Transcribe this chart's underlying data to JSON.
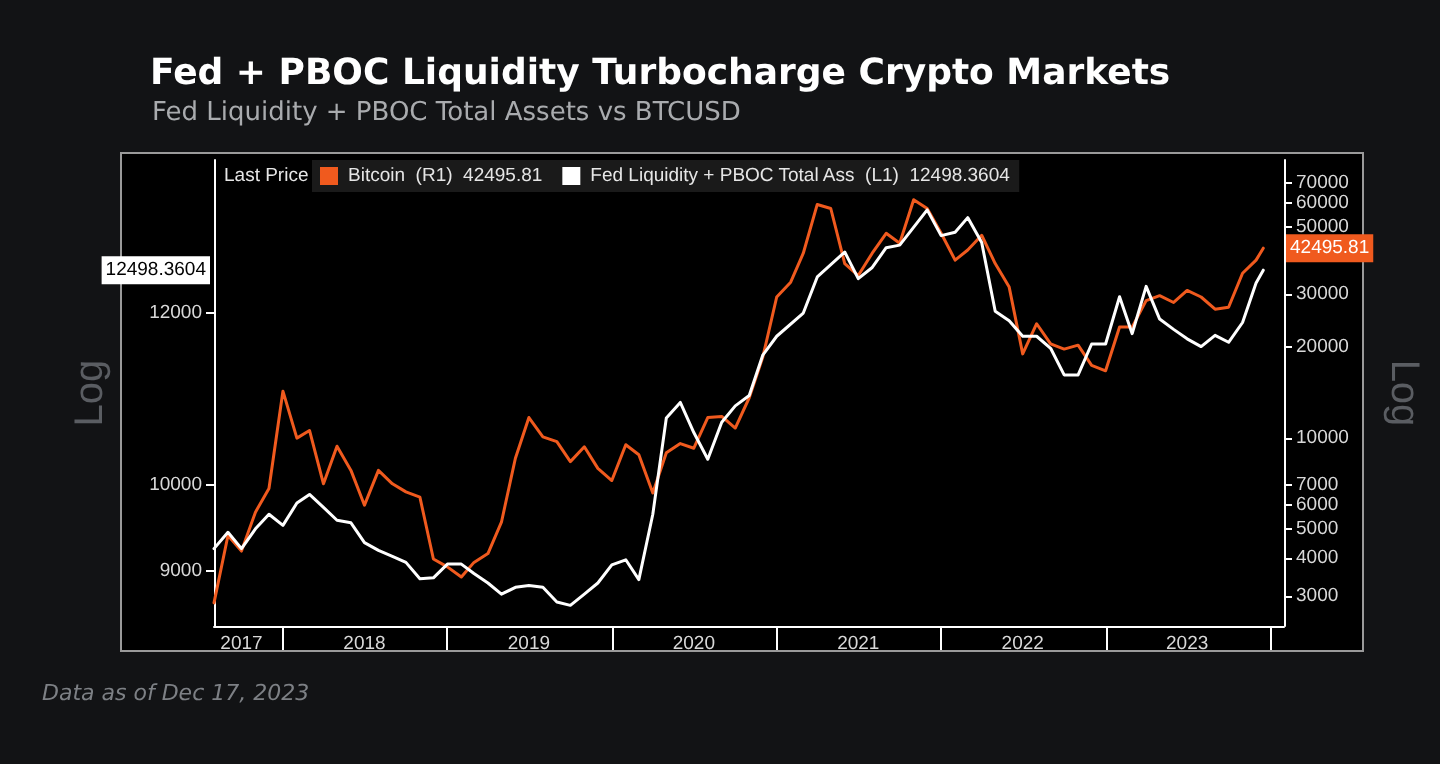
{
  "chart_data": {
    "type": "line",
    "title": "Fed + PBOC Liquidity Turbocharge Crypto Markets",
    "subtitle": "Fed Liquidity + PBOC Total Assets vs BTCUSD",
    "ylabel": "Log",
    "y2label": "Log",
    "legend_title": "Last Price",
    "legend": "top left",
    "grid": false,
    "marker": "none",
    "line_style": "solid",
    "log": "y2",
    "xlim": [
      "2017-08",
      "2024-02"
    ],
    "xticks": [
      {
        "value": "2017-10",
        "label": "2017"
      },
      {
        "value": "2018",
        "label": null
      },
      {
        "value": "2018-07",
        "label": "2018"
      },
      {
        "value": "2019",
        "label": null
      },
      {
        "value": "2019-07",
        "label": "2019"
      },
      {
        "value": "2020",
        "label": null
      },
      {
        "value": "2020-07",
        "label": "2020"
      },
      {
        "value": "2021",
        "label": null
      },
      {
        "value": "2021-07",
        "label": "2021"
      },
      {
        "value": "2022",
        "label": null
      },
      {
        "value": "2022-07",
        "label": "2022"
      },
      {
        "value": "2023",
        "label": null
      },
      {
        "value": "2023-07",
        "label": "2023"
      },
      {
        "value": "2024",
        "label": null
      }
    ],
    "ylim": [
      8360,
      13780
    ],
    "yticks": [
      9000,
      10000,
      12000
    ],
    "y2lim": [
      2390,
      83200
    ],
    "y2ticks": [
      3000,
      4000,
      5000,
      6000,
      7000,
      10000,
      20000,
      30000,
      50000,
      60000,
      70000
    ],
    "series": [
      {
        "name": "Bitcoin  (R1)  42495.81",
        "color": "#f05a1e",
        "axis": "y2",
        "x": [
          "2017-08",
          "2017-09",
          "2017-10",
          "2017-11",
          "2017-12",
          "2018-01",
          "2018-02",
          "2018-03",
          "2018-04",
          "2018-05",
          "2018-06",
          "2018-07",
          "2018-08",
          "2018-09",
          "2018-10",
          "2018-11",
          "2018-12",
          "2019-01",
          "2019-02",
          "2019-03",
          "2019-04",
          "2019-05",
          "2019-06",
          "2019-07",
          "2019-08",
          "2019-09",
          "2019-10",
          "2019-11",
          "2019-12",
          "2020-01",
          "2020-02",
          "2020-03",
          "2020-04",
          "2020-05",
          "2020-06",
          "2020-07",
          "2020-08",
          "2020-09",
          "2020-10",
          "2020-11",
          "2020-12",
          "2021-01",
          "2021-02",
          "2021-03",
          "2021-04",
          "2021-05",
          "2021-06",
          "2021-07",
          "2021-08",
          "2021-09",
          "2021-10",
          "2021-11",
          "2021-12",
          "2022-01",
          "2022-02",
          "2022-03",
          "2022-04",
          "2022-05",
          "2022-06",
          "2022-07",
          "2022-08",
          "2022-09",
          "2022-10",
          "2022-11",
          "2022-12",
          "2023-01",
          "2023-02",
          "2023-03",
          "2023-04",
          "2023-05",
          "2023-06",
          "2023-07",
          "2023-08",
          "2023-09",
          "2023-10",
          "2023-11",
          "2023-12",
          "2023-12-17"
        ],
        "values": [
          2850,
          4760,
          4230,
          5690,
          6810,
          14300,
          10000,
          10600,
          7060,
          9400,
          7820,
          6000,
          7820,
          7060,
          6640,
          6380,
          3980,
          3750,
          3470,
          3880,
          4150,
          5270,
          8580,
          11700,
          10100,
          9740,
          8360,
          9360,
          7940,
          7240,
          9510,
          8810,
          6580,
          8940,
          9590,
          9260,
          11700,
          11800,
          10800,
          13600,
          18500,
          29300,
          32800,
          40900,
          59300,
          57500,
          37800,
          34500,
          40900,
          47600,
          44100,
          61500,
          57500,
          47600,
          38800,
          41900,
          46900,
          37800,
          31600,
          19000,
          23900,
          20500,
          19700,
          20300,
          17400,
          16700,
          23300,
          23300,
          28500,
          29600,
          28100,
          30800,
          29300,
          26700,
          27100,
          35100,
          38800,
          42495.81
        ],
        "value_labels": [
          null,
          null,
          null,
          null,
          null,
          null,
          null,
          null,
          null,
          null,
          null,
          null,
          null,
          null,
          null,
          null,
          null,
          null,
          null,
          null,
          null,
          null,
          null,
          null,
          null,
          null,
          null,
          null,
          null,
          null,
          null,
          null,
          null,
          null,
          null,
          null,
          null,
          null,
          null,
          null,
          null,
          null,
          null,
          null,
          null,
          null,
          null,
          null,
          null,
          null,
          null,
          null,
          null,
          null,
          null,
          null,
          null,
          null,
          null,
          null,
          null,
          null,
          null,
          null,
          null,
          null,
          null,
          null,
          null,
          null,
          null,
          null,
          null,
          null,
          null,
          null,
          null,
          "42495.81"
        ]
      },
      {
        "name": "Fed Liquidity + PBOC Total Ass  (L1)  12498.3604",
        "color": "#ffffff",
        "x": [
          "2017-08",
          "2017-09",
          "2017-10",
          "2017-11",
          "2017-12",
          "2018-01",
          "2018-02",
          "2018-03",
          "2018-04",
          "2018-05",
          "2018-06",
          "2018-07",
          "2018-08",
          "2018-09",
          "2018-10",
          "2018-11",
          "2018-12",
          "2019-01",
          "2019-02",
          "2019-03",
          "2019-04",
          "2019-05",
          "2019-06",
          "2019-07",
          "2019-08",
          "2019-09",
          "2019-10",
          "2019-11",
          "2019-12",
          "2020-01",
          "2020-02",
          "2020-03",
          "2020-04",
          "2020-05",
          "2020-06",
          "2020-07",
          "2020-08",
          "2020-09",
          "2020-10",
          "2020-11",
          "2020-12",
          "2021-01",
          "2021-03",
          "2021-04",
          "2021-06",
          "2021-07",
          "2021-08",
          "2021-09",
          "2021-10",
          "2021-12",
          "2022-01",
          "2022-02",
          "2022-03",
          "2022-04",
          "2022-05",
          "2022-06",
          "2022-07",
          "2022-08",
          "2022-09",
          "2022-10",
          "2022-11",
          "2022-12",
          "2023-01",
          "2023-02",
          "2023-03",
          "2023-04",
          "2023-05",
          "2023-06",
          "2023-07",
          "2023-08",
          "2023-09",
          "2023-10",
          "2023-11",
          "2023-12",
          "2023-12-17"
        ],
        "values": [
          9260,
          9450,
          9260,
          9490,
          9660,
          9530,
          9790,
          9890,
          9740,
          9590,
          9560,
          9330,
          9240,
          9170,
          9100,
          8910,
          8920,
          9080,
          9080,
          8970,
          8860,
          8730,
          8810,
          8830,
          8810,
          8640,
          8600,
          8730,
          8860,
          9070,
          9130,
          8900,
          9660,
          10780,
          10960,
          10610,
          10300,
          10730,
          10920,
          11040,
          11510,
          11730,
          12000,
          12420,
          12710,
          12400,
          12530,
          12760,
          12790,
          13200,
          12900,
          12940,
          13110,
          12820,
          12020,
          11910,
          11730,
          11730,
          11590,
          11280,
          11280,
          11640,
          11640,
          12190,
          11760,
          12310,
          11930,
          11810,
          11700,
          11610,
          11740,
          11660,
          11890,
          12350,
          12498.3604
        ],
        "value_labels": [
          null,
          null,
          null,
          null,
          null,
          null,
          null,
          null,
          null,
          null,
          null,
          null,
          null,
          null,
          null,
          null,
          null,
          null,
          null,
          null,
          null,
          null,
          null,
          null,
          null,
          null,
          null,
          null,
          null,
          null,
          null,
          null,
          null,
          null,
          null,
          null,
          null,
          null,
          null,
          null,
          null,
          null,
          null,
          null,
          null,
          null,
          null,
          null,
          null,
          null,
          null,
          null,
          null,
          null,
          null,
          null,
          null,
          null,
          null,
          null,
          null,
          null,
          null,
          null,
          null,
          null,
          null,
          null,
          null,
          null,
          null,
          null,
          null,
          null,
          null
        ]
      }
    ],
    "annotations": [
      "Data as of Dec 17, 2023",
      "12498.3604"
    ]
  }
}
